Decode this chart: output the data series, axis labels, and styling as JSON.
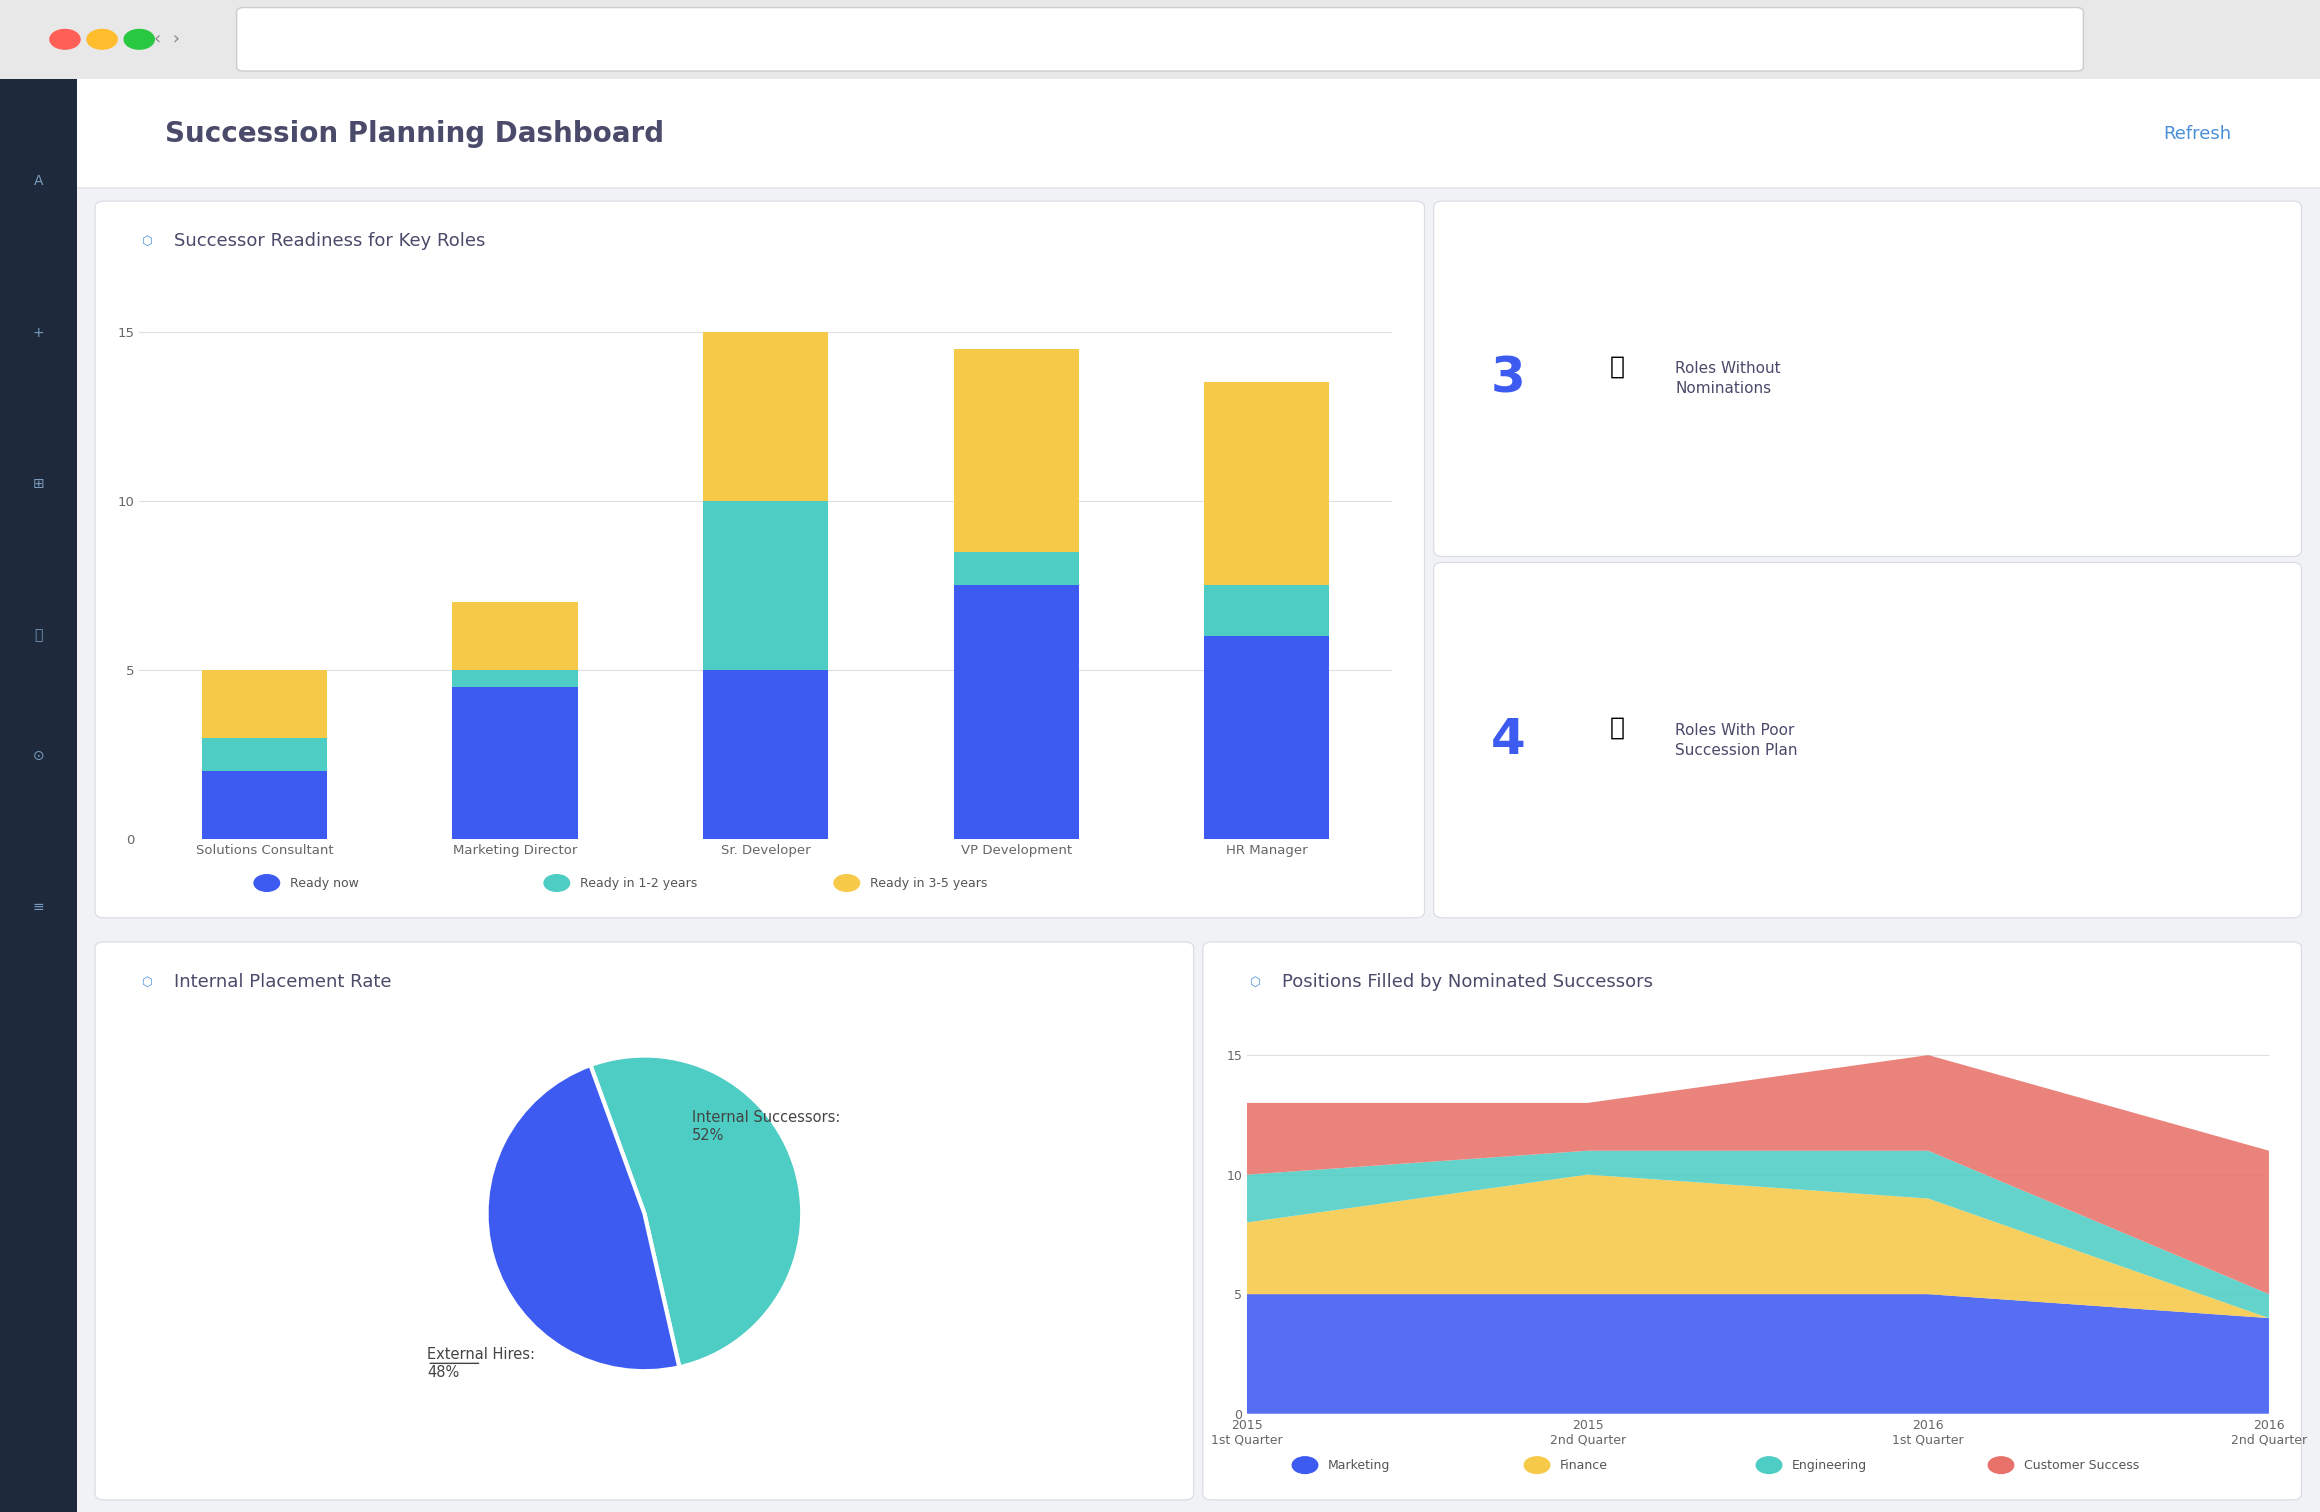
{
  "dashboard_title": "Succession Planning Dashboard",
  "bg_color": "#f0f2f5",
  "sidebar_color": "#1e2a3b",
  "header_color": "#ffffff",
  "title_color": "#4a4a6a",
  "blue_accent": "#4a90d9",
  "refresh_color": "#4a90d9",
  "bar_chart_title": "Successor Readiness for Key Roles",
  "bar_categories": [
    "Solutions Consultant",
    "Marketing Director",
    "Sr. Developer",
    "VP Development",
    "HR Manager"
  ],
  "bar_ready_now": [
    2,
    4.5,
    5,
    7.5,
    6
  ],
  "bar_ready_1_2": [
    1,
    0.5,
    5,
    1,
    1.5
  ],
  "bar_ready_3_5": [
    2,
    2,
    5,
    6,
    6
  ],
  "bar_color_ready_now": "#3d5af1",
  "bar_color_ready_1_2": "#4ecdc4",
  "bar_color_ready_3_5": "#f7c948",
  "bar_ylim": [
    0,
    16
  ],
  "bar_yticks": [
    0,
    5,
    10,
    15
  ],
  "kpi1_number": "3",
  "kpi1_label": "Roles Without\nNominations",
  "kpi2_number": "4",
  "kpi2_label": "Roles With Poor\nSuccession Plan",
  "kpi_number_color": "#3d5af1",
  "kpi_label_color": "#4a4a6a",
  "pie_title": "Internal Placement Rate",
  "pie_values": [
    52,
    48
  ],
  "pie_colors": [
    "#4ecdc4",
    "#3d5af1"
  ],
  "pie_label_internal": "Internal Successors:\n52%",
  "pie_label_external": "External Hires:\n48%",
  "area_title": "Positions Filled by Nominated Successors",
  "area_x_labels": [
    "2015\n1st Quarter",
    "2015\n2nd Quarter",
    "2016\n1st Quarter",
    "2016\n2nd Quarter"
  ],
  "area_marketing": [
    5,
    5,
    5,
    4
  ],
  "area_finance": [
    3,
    5,
    4,
    0
  ],
  "area_engineering": [
    2,
    1,
    2,
    1
  ],
  "area_customer_success": [
    3,
    2,
    4,
    6
  ],
  "area_color_marketing": "#3d5af1",
  "area_color_finance": "#f7c948",
  "area_color_engineering": "#4ecdc4",
  "area_color_customer_success": "#e8726a",
  "area_ylim": [
    0,
    16
  ],
  "area_yticks": [
    0,
    5,
    10,
    15
  ]
}
